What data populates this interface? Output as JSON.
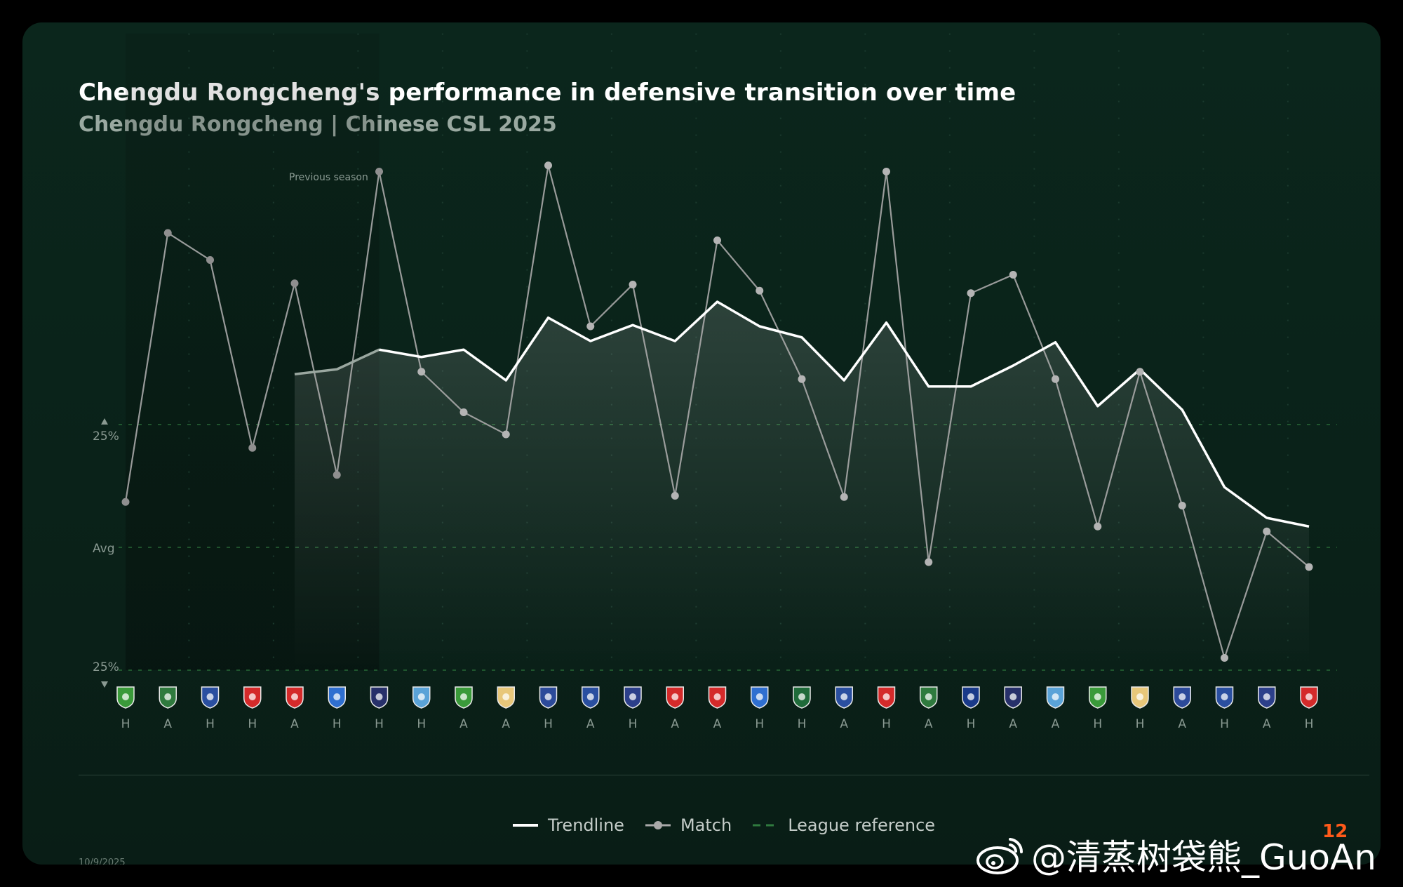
{
  "title": "Chengdu Rongcheng's performance in defensive transition over time",
  "subtitle": "Chengdu Rongcheng | Chinese CSL 2025",
  "date": "10/9/2025",
  "watermark": "@清蒸树袋熊_GuoAn",
  "brand_mark": "12",
  "legend": {
    "trendline": "Trendline",
    "match": "Match",
    "league": "League reference"
  },
  "colors": {
    "background": "#0a2219",
    "trendline": "#ffffff",
    "match": "#a9a9a9",
    "league": "#2f7a3e",
    "text_muted": "#8a9a92"
  },
  "chart_data": {
    "type": "line",
    "title": "Chengdu Rongcheng's performance in defensive transition over time",
    "subtitle": "Chengdu Rongcheng | Chinese CSL 2025",
    "y_labels": {
      "top": "25%",
      "middle": "Avg",
      "bottom": "25%"
    },
    "y_ticks": [
      {
        "label": "25%",
        "value": 1
      },
      {
        "label": "Avg",
        "value": 0
      },
      {
        "label": "25%",
        "value": -1
      }
    ],
    "ylim": [
      -1,
      4.5
    ],
    "annotation": "Previous season",
    "previous_season_matches": 7,
    "grid": true,
    "legend_placement": "bottom-center",
    "matches": [
      {
        "venue": "H",
        "crest": "#3a9a3a"
      },
      {
        "venue": "A",
        "crest": "#2f7a3e"
      },
      {
        "venue": "H",
        "crest": "#2a4fa0"
      },
      {
        "venue": "H",
        "crest": "#d42a2a"
      },
      {
        "venue": "A",
        "crest": "#d42a2a"
      },
      {
        "venue": "H",
        "crest": "#2f6fd0"
      },
      {
        "venue": "H",
        "crest": "#27306a"
      },
      {
        "venue": "H",
        "crest": "#5aa3d8"
      },
      {
        "venue": "A",
        "crest": "#3a9a3a"
      },
      {
        "venue": "A",
        "crest": "#e8c77a"
      },
      {
        "venue": "H",
        "crest": "#2c4a9a"
      },
      {
        "venue": "A",
        "crest": "#2a4fa0"
      },
      {
        "venue": "H",
        "crest": "#2c3f8a"
      },
      {
        "venue": "A",
        "crest": "#d42a2a"
      },
      {
        "venue": "A",
        "crest": "#d42a2a"
      },
      {
        "venue": "H",
        "crest": "#2f6fd0"
      },
      {
        "venue": "H",
        "crest": "#1f6b3a"
      },
      {
        "venue": "A",
        "crest": "#2a4fa0"
      },
      {
        "venue": "H",
        "crest": "#d42a2a"
      },
      {
        "venue": "A",
        "crest": "#2f7a3e"
      },
      {
        "venue": "H",
        "crest": "#1a3a8a"
      },
      {
        "venue": "A",
        "crest": "#27306a"
      },
      {
        "venue": "A",
        "crest": "#5aa3d8"
      },
      {
        "venue": "H",
        "crest": "#3a9a3a"
      },
      {
        "venue": "H",
        "crest": "#e8c77a"
      },
      {
        "venue": "A",
        "crest": "#2c4a9a"
      },
      {
        "venue": "H",
        "crest": "#2a4fa0"
      },
      {
        "venue": "A",
        "crest": "#2c3f8a"
      },
      {
        "venue": "H",
        "crest": "#d42a2a"
      }
    ],
    "series": [
      {
        "name": "Match",
        "values": [
          0.37,
          2.56,
          2.34,
          0.81,
          2.15,
          0.59,
          3.06,
          1.43,
          1.1,
          0.92,
          3.11,
          1.8,
          2.14,
          0.42,
          2.5,
          2.09,
          1.37,
          0.41,
          3.06,
          -0.12,
          2.07,
          2.22,
          1.37,
          0.17,
          1.43,
          0.34,
          -0.9,
          0.13,
          -0.16
        ]
      },
      {
        "name": "Trendline",
        "start_index": 4,
        "values": [
          null,
          null,
          null,
          null,
          1.41,
          1.45,
          1.61,
          1.55,
          1.61,
          1.36,
          1.87,
          1.68,
          1.81,
          1.68,
          2.0,
          1.8,
          1.71,
          1.36,
          1.83,
          1.31,
          1.31,
          1.48,
          1.67,
          1.15,
          1.45,
          1.12,
          0.49,
          0.24,
          0.17
        ]
      }
    ]
  }
}
